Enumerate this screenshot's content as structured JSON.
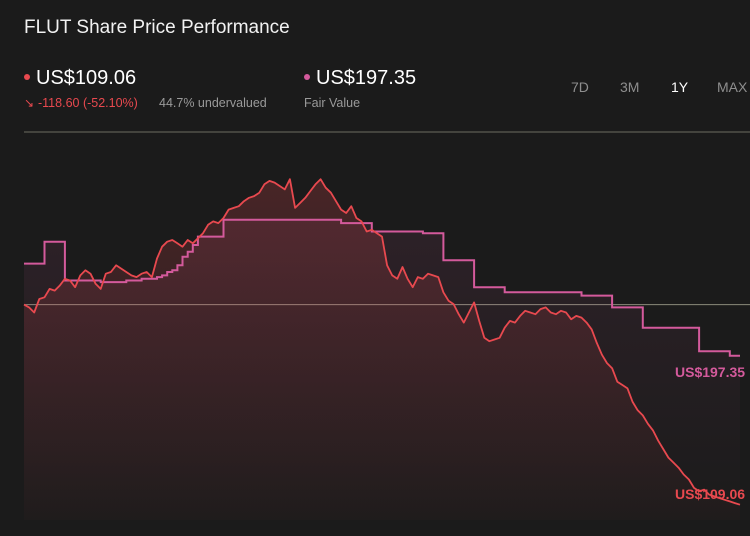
{
  "header": {
    "title": "FLUT Share Price Performance",
    "price_label": "US$109.06",
    "change_label": "-118.60 (-52.10%)",
    "valuation_label": "44.7% undervalued",
    "fair_value_price": "US$197.35",
    "fair_value_label": "Fair Value"
  },
  "tabs": [
    {
      "label": "7D",
      "active": false
    },
    {
      "label": "3M",
      "active": false
    },
    {
      "label": "1Y",
      "active": true
    },
    {
      "label": "MAX",
      "active": false
    }
  ],
  "colors": {
    "price": "#e8494f",
    "fair_value": "#d45a9c",
    "reference_line": "#8a8a7a",
    "background": "#1b1b1b"
  },
  "icons": {
    "price_dot": "red-dot-icon",
    "fair_value_dot": "pink-dot-icon",
    "change_arrow": "arrow-down-right-icon"
  },
  "chart_data": {
    "type": "line",
    "ylim": [
      100,
      330
    ],
    "grid": false,
    "reference_line": 227.66,
    "series": [
      {
        "name": "Share price",
        "end_label": "US$109.06",
        "values": [
          227.66,
          226,
          223,
          231,
          232,
          237,
          236,
          239,
          243,
          242,
          238,
          245,
          248,
          246,
          240,
          237,
          246,
          247,
          251,
          249,
          247,
          245,
          244,
          246,
          247,
          244,
          255,
          262,
          265,
          266,
          264,
          262,
          266,
          264,
          267,
          270,
          275,
          277,
          276,
          279,
          284,
          285,
          286,
          289,
          291,
          292,
          294,
          299,
          301,
          300,
          298,
          296,
          302,
          285,
          288,
          291,
          295,
          299,
          302,
          297,
          294,
          289,
          284,
          282,
          286,
          279,
          277,
          271,
          272,
          270,
          268,
          251,
          245,
          243,
          250,
          243,
          238,
          244,
          243,
          246,
          245,
          244,
          235,
          230,
          228,
          222,
          217,
          223,
          229,
          218,
          208,
          206,
          207,
          208,
          214,
          218,
          217,
          221,
          224,
          223,
          222,
          225,
          226,
          223,
          222,
          224,
          223,
          219,
          221,
          220,
          217,
          213,
          205,
          198,
          193,
          190,
          182,
          180,
          178,
          170,
          165,
          162,
          157,
          153,
          147,
          142,
          137,
          134,
          131,
          127,
          124,
          119,
          117,
          118,
          115,
          114,
          113,
          112,
          111,
          110,
          109.06
        ]
      },
      {
        "name": "Fair value",
        "end_label": "US$197.35",
        "values": [
          252,
          252,
          252,
          252,
          265,
          265,
          265,
          265,
          242,
          242,
          242,
          242,
          242,
          242,
          242,
          241,
          241,
          241,
          241,
          241,
          242,
          242,
          242,
          243,
          243,
          243,
          244,
          245,
          247,
          248,
          251,
          256,
          259,
          263,
          268,
          268,
          268,
          268,
          268,
          278,
          278,
          278,
          278,
          278,
          278,
          278,
          278,
          278,
          278,
          278,
          278,
          278,
          278,
          278,
          278,
          278,
          278,
          278,
          278,
          278,
          278,
          278,
          276,
          276,
          276,
          276,
          276,
          276,
          271,
          271,
          271,
          271,
          271,
          271,
          271,
          271,
          271,
          271,
          270,
          270,
          270,
          270,
          254,
          254,
          254,
          254,
          254,
          254,
          238,
          238,
          238,
          238,
          238,
          238,
          235,
          235,
          235,
          235,
          235,
          235,
          235,
          235,
          235,
          235,
          235,
          235,
          235,
          235,
          235,
          233,
          233,
          233,
          233,
          233,
          233,
          226,
          226,
          226,
          226,
          226,
          226,
          214,
          214,
          214,
          214,
          214,
          214,
          214,
          214,
          214,
          214,
          214,
          200,
          200,
          200,
          200,
          200,
          200,
          197.35,
          197.35,
          197.35
        ]
      }
    ]
  }
}
